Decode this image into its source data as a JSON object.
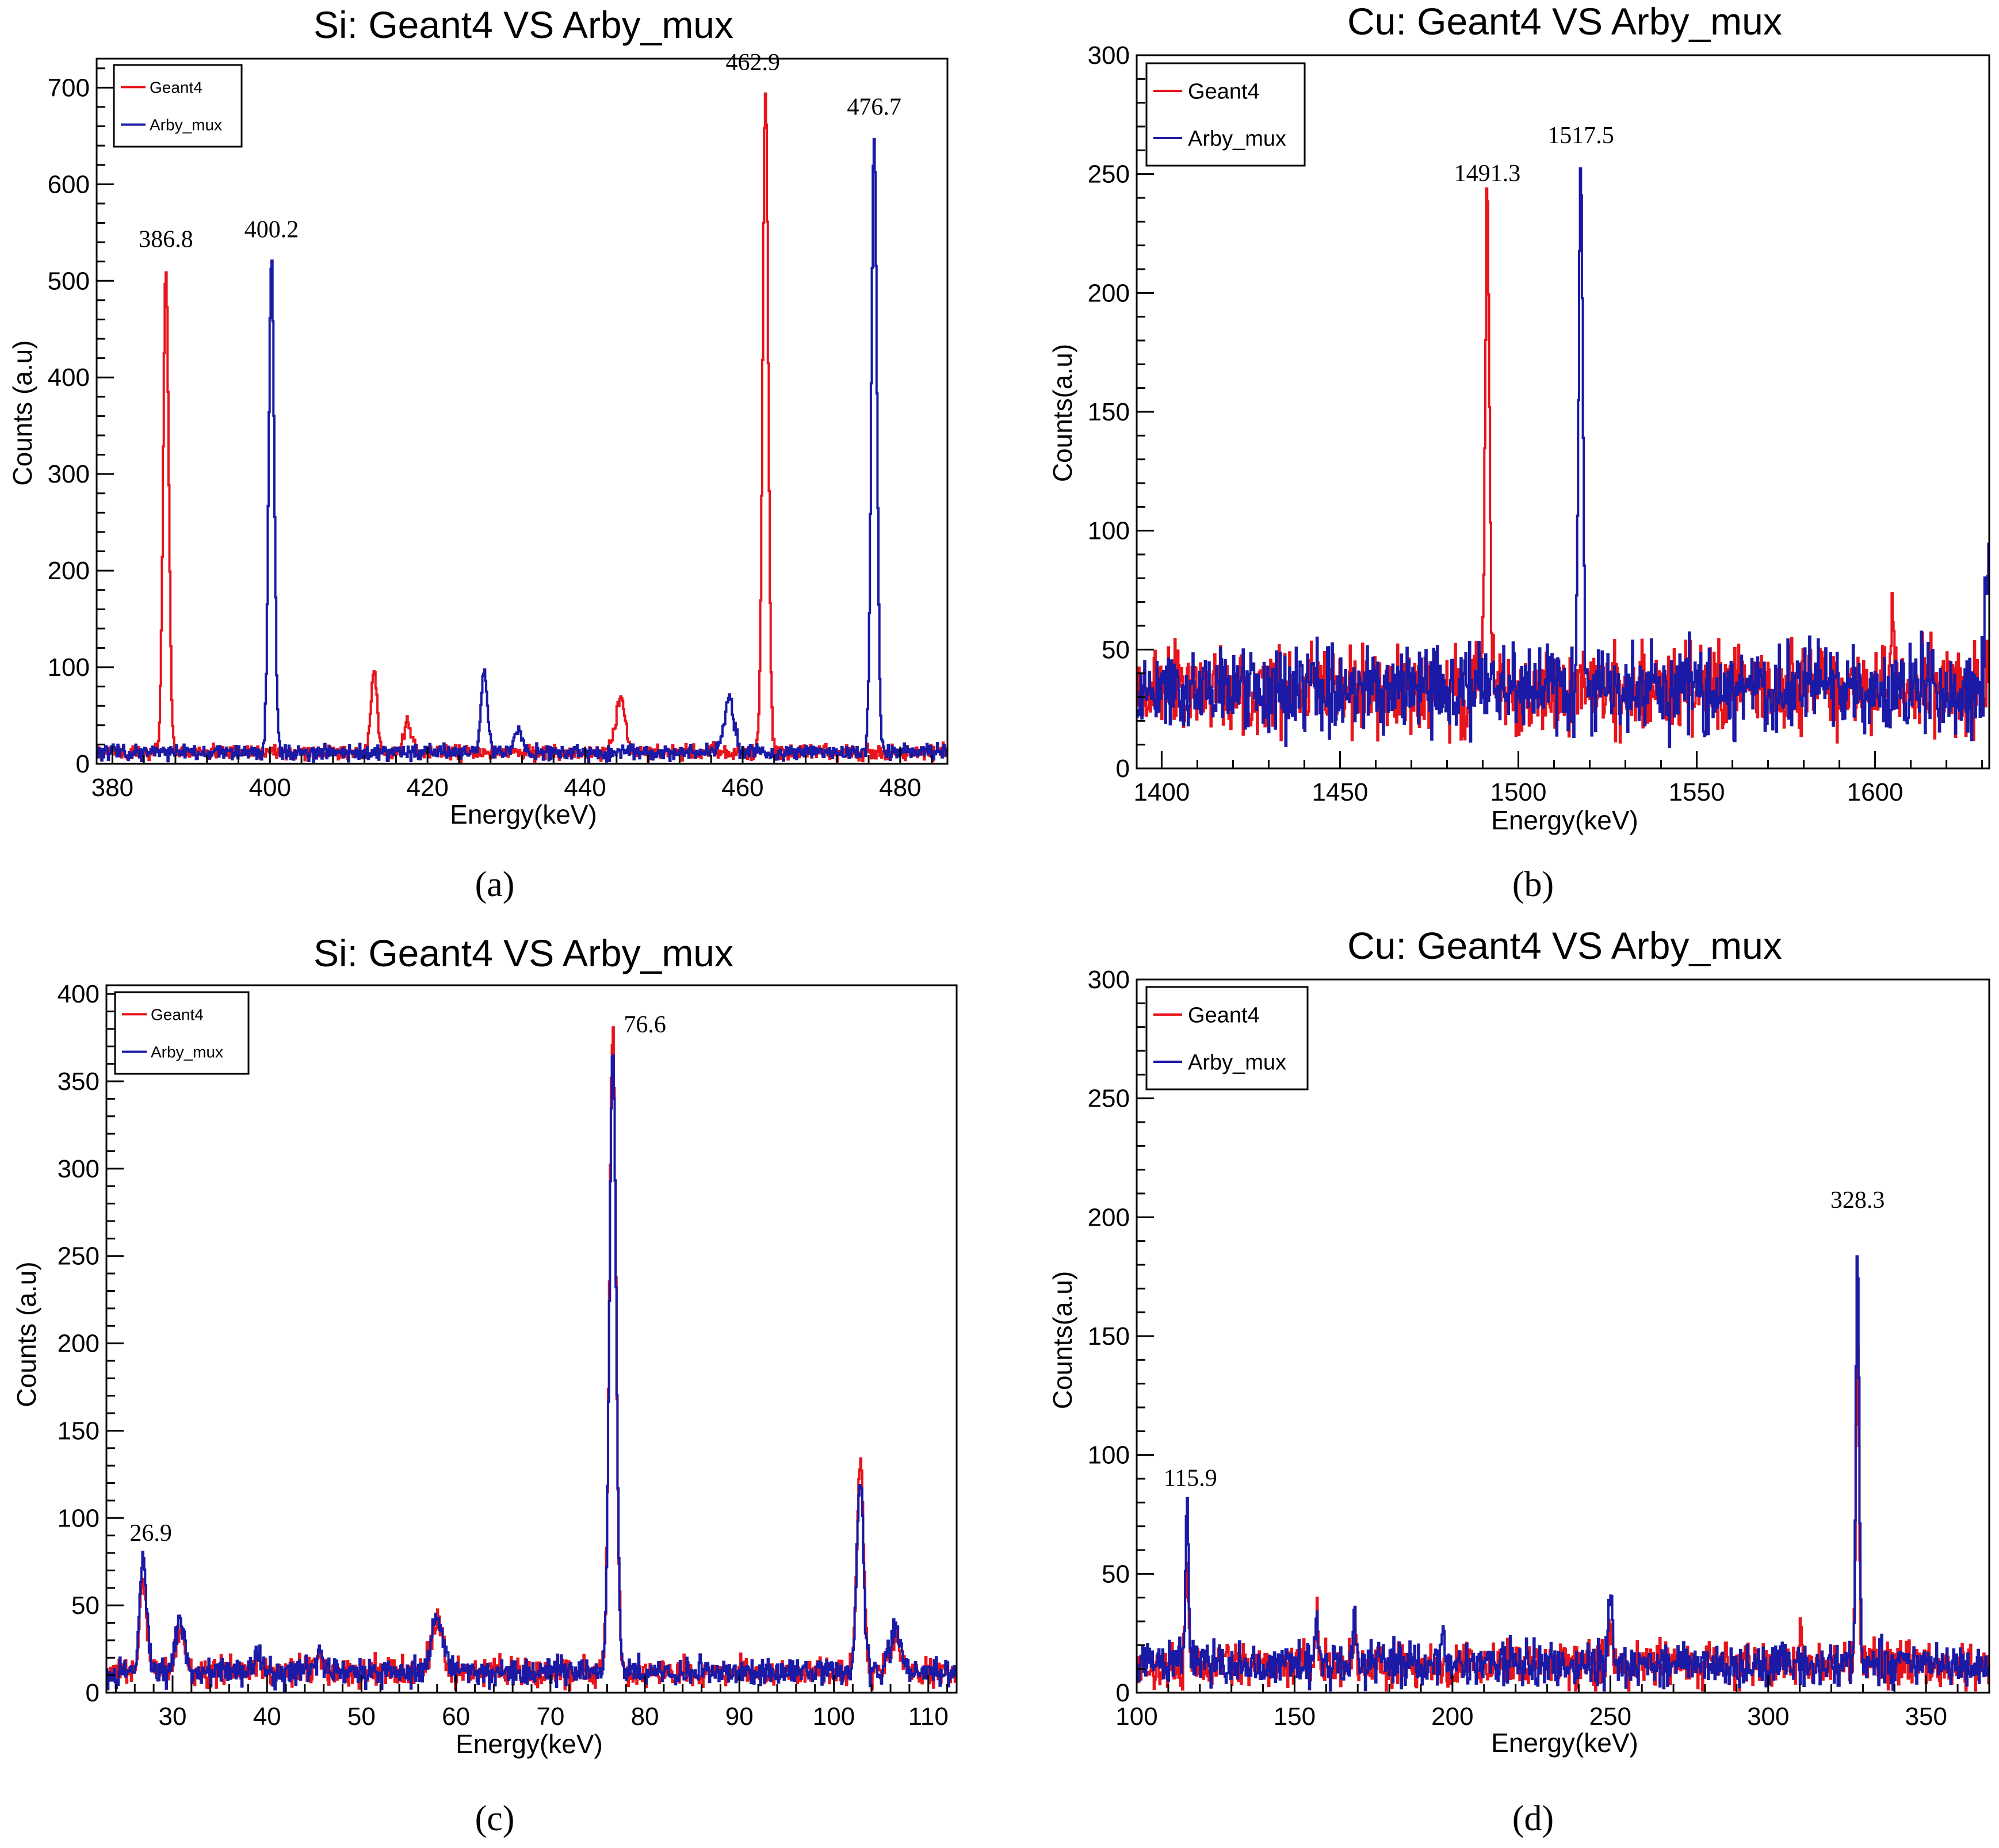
{
  "colors": {
    "geant4": "#e8141c",
    "arby": "#1a1aa6",
    "axis": "#000000"
  },
  "chart_data": [
    {
      "panel": "a",
      "caption": "(a)",
      "type": "line",
      "title": "Si: Geant4 VS Arby_mux",
      "xlabel": "Energy(keV)",
      "ylabel": "Counts (a.u)",
      "xlim": [
        378,
        486
      ],
      "ylim": [
        0,
        730
      ],
      "xticks": [
        380,
        400,
        420,
        440,
        460,
        480
      ],
      "yticks": [
        0,
        100,
        200,
        300,
        400,
        500,
        600,
        700
      ],
      "legend": [
        "Geant4",
        "Arby_mux"
      ],
      "legend_position": "top-left",
      "baseline": 12,
      "noise": 6,
      "series": [
        {
          "name": "Geant4",
          "color_key": "geant4",
          "peaks": [
            [
              386.8,
              500,
              0.35
            ],
            [
              413.2,
              85,
              0.4
            ],
            [
              417.5,
              30,
              0.5
            ],
            [
              444.5,
              55,
              0.6
            ],
            [
              462.9,
              690,
              0.35
            ]
          ]
        },
        {
          "name": "Arby_mux",
          "color_key": "arby",
          "peaks": [
            [
              400.2,
              510,
              0.35
            ],
            [
              427.2,
              85,
              0.4
            ],
            [
              431.5,
              25,
              0.5
            ],
            [
              458.3,
              55,
              0.6
            ],
            [
              476.7,
              640,
              0.35
            ]
          ]
        }
      ],
      "annotations": [
        {
          "text": "386.8",
          "x": 386.8,
          "y": 535
        },
        {
          "text": "400.2",
          "x": 400.2,
          "y": 545
        },
        {
          "text": "462.9",
          "x": 461.3,
          "y": 718
        },
        {
          "text": "476.7",
          "x": 476.7,
          "y": 672
        }
      ]
    },
    {
      "panel": "b",
      "caption": "(b)",
      "type": "line",
      "title": "Cu: Geant4 VS Arby_mux",
      "xlabel": "Energy(keV)",
      "ylabel": "Counts(a.u)",
      "xlim": [
        1393,
        1632
      ],
      "ylim": [
        0,
        300
      ],
      "xticks": [
        1400,
        1450,
        1500,
        1550,
        1600
      ],
      "yticks": [
        0,
        50,
        100,
        150,
        200,
        250,
        300
      ],
      "legend": [
        "Geant4",
        "Arby_mux"
      ],
      "legend_position": "top-left",
      "baseline": 33,
      "noise": 14,
      "series": [
        {
          "name": "Geant4",
          "color_key": "geant4",
          "peaks": [
            [
              1491.3,
              205,
              0.6
            ],
            [
              1605,
              30,
              0.6
            ]
          ]
        },
        {
          "name": "Arby_mux",
          "color_key": "arby",
          "peaks": [
            [
              1517.5,
              222,
              0.6
            ],
            [
              1631.5,
              55,
              0.6
            ]
          ]
        }
      ],
      "annotations": [
        {
          "text": "1491.3",
          "x": 1491.3,
          "y": 247
        },
        {
          "text": "1517.5",
          "x": 1517.5,
          "y": 263
        }
      ]
    },
    {
      "panel": "c",
      "caption": "(c)",
      "type": "line",
      "title": "Si: Geant4 VS Arby_mux",
      "xlabel": "Energy(keV)",
      "ylabel": "Counts (a.u)",
      "xlim": [
        23,
        113
      ],
      "ylim": [
        0,
        405
      ],
      "xticks": [
        30,
        40,
        50,
        60,
        70,
        80,
        90,
        100,
        110
      ],
      "yticks": [
        0,
        50,
        100,
        150,
        200,
        250,
        300,
        350,
        400
      ],
      "legend": [
        "Geant4",
        "Arby_mux"
      ],
      "legend_position": "top-left",
      "baseline": 12,
      "noise": 6,
      "series": [
        {
          "name": "Geant4",
          "color_key": "geant4",
          "peaks": [
            [
              26.9,
              55,
              0.35
            ],
            [
              30.8,
              25,
              0.5
            ],
            [
              39,
              6,
              0.4
            ],
            [
              45.5,
              6,
              0.4
            ],
            [
              58,
              28,
              0.6
            ],
            [
              76.6,
              370,
              0.35
            ],
            [
              102.8,
              120,
              0.35
            ],
            [
              106.5,
              20,
              0.6
            ]
          ]
        },
        {
          "name": "Arby_mux",
          "color_key": "arby",
          "peaks": [
            [
              26.9,
              65,
              0.35
            ],
            [
              30.8,
              27,
              0.5
            ],
            [
              39,
              8,
              0.4
            ],
            [
              45.5,
              8,
              0.4
            ],
            [
              58,
              30,
              0.6
            ],
            [
              76.6,
              355,
              0.35
            ],
            [
              102.8,
              112,
              0.35
            ],
            [
              106.5,
              22,
              0.6
            ]
          ]
        }
      ],
      "annotations": [
        {
          "text": "26.9",
          "x": 27.7,
          "y": 87
        },
        {
          "text": "76.6",
          "x": 80,
          "y": 378
        }
      ]
    },
    {
      "panel": "d",
      "caption": "(d)",
      "type": "line",
      "title": "Cu: Geant4 VS Arby_mux",
      "xlabel": "Energy(keV)",
      "ylabel": "Counts(a.u)",
      "xlim": [
        100,
        370
      ],
      "ylim": [
        0,
        300
      ],
      "xticks": [
        100,
        150,
        200,
        250,
        300,
        350
      ],
      "yticks": [
        0,
        50,
        100,
        150,
        200,
        250,
        300
      ],
      "legend": [
        "Geant4",
        "Arby_mux"
      ],
      "legend_position": "top-left",
      "baseline": 12,
      "noise": 7,
      "series": [
        {
          "name": "Geant4",
          "color_key": "geant4",
          "peaks": [
            [
              115.9,
              40,
              0.5
            ],
            [
              157,
              25,
              0.5
            ],
            [
              169,
              12,
              0.5
            ],
            [
              250,
              15,
              0.6
            ],
            [
              310,
              15,
              0.5
            ],
            [
              328.3,
              135,
              0.5
            ]
          ]
        },
        {
          "name": "Arby_mux",
          "color_key": "arby",
          "peaks": [
            [
              115.9,
              68,
              0.5
            ],
            [
              157,
              20,
              0.5
            ],
            [
              169,
              24,
              0.5
            ],
            [
              197,
              15,
              0.5
            ],
            [
              250,
              30,
              0.6
            ],
            [
              328.3,
              180,
              0.5
            ]
          ]
        }
      ],
      "annotations": [
        {
          "text": "115.9",
          "x": 117,
          "y": 87
        },
        {
          "text": "328.3",
          "x": 328.3,
          "y": 204
        }
      ]
    }
  ]
}
